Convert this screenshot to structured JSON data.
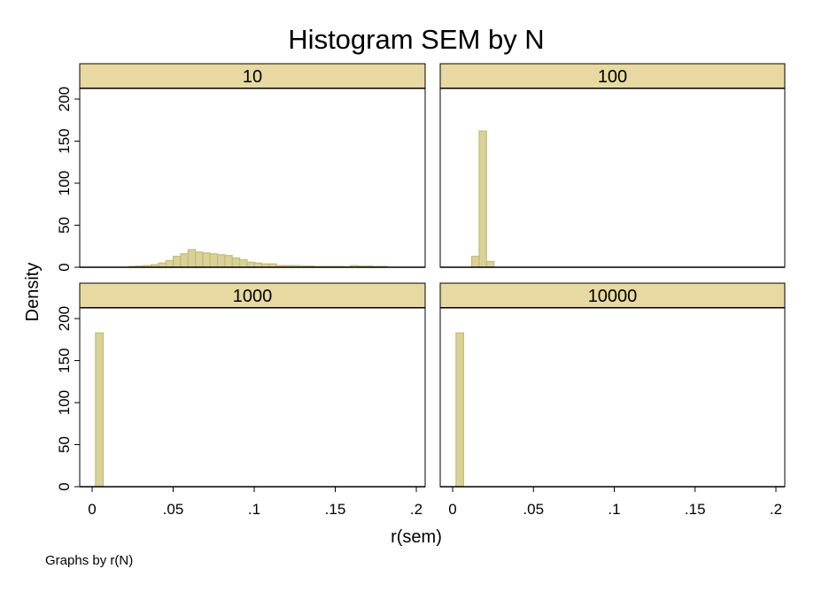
{
  "chart_data": {
    "type": "bar",
    "title": "Histogram SEM by N",
    "xlabel": "r(sem)",
    "ylabel": "Density",
    "note": "Graphs by r(N)",
    "xlim": [
      0,
      0.2
    ],
    "ylim": [
      0,
      200
    ],
    "xticks": [
      "0",
      ".05",
      ".1",
      ".15",
      ".2"
    ],
    "yticks": [
      "0",
      "50",
      "100",
      "150",
      "200"
    ],
    "grid": false,
    "colors": {
      "bar_fill": "#d8d19a",
      "bar_stroke": "#c6bc73",
      "strip_fill": "#e7d9a1"
    },
    "panels": [
      {
        "label": "10",
        "bin_width": 0.00455,
        "bins": [
          {
            "x": 0.0228,
            "y": 1
          },
          {
            "x": 0.0273,
            "y": 1.5
          },
          {
            "x": 0.0319,
            "y": 2
          },
          {
            "x": 0.0364,
            "y": 3
          },
          {
            "x": 0.041,
            "y": 5
          },
          {
            "x": 0.0455,
            "y": 8
          },
          {
            "x": 0.05,
            "y": 13
          },
          {
            "x": 0.0546,
            "y": 16
          },
          {
            "x": 0.0592,
            "y": 21
          },
          {
            "x": 0.0637,
            "y": 18
          },
          {
            "x": 0.0683,
            "y": 17
          },
          {
            "x": 0.0728,
            "y": 16
          },
          {
            "x": 0.0774,
            "y": 15
          },
          {
            "x": 0.0819,
            "y": 14
          },
          {
            "x": 0.0865,
            "y": 11
          },
          {
            "x": 0.091,
            "y": 9
          },
          {
            "x": 0.0956,
            "y": 6
          },
          {
            "x": 0.1001,
            "y": 5
          },
          {
            "x": 0.1047,
            "y": 4
          },
          {
            "x": 0.1092,
            "y": 4
          },
          {
            "x": 0.1138,
            "y": 2
          },
          {
            "x": 0.1183,
            "y": 2
          },
          {
            "x": 0.1229,
            "y": 2
          },
          {
            "x": 0.1274,
            "y": 1.5
          },
          {
            "x": 0.132,
            "y": 1.5
          },
          {
            "x": 0.1365,
            "y": 1
          },
          {
            "x": 0.1411,
            "y": 1
          },
          {
            "x": 0.1456,
            "y": 1
          },
          {
            "x": 0.1502,
            "y": 1
          },
          {
            "x": 0.1547,
            "y": 0.8
          },
          {
            "x": 0.1593,
            "y": 2
          },
          {
            "x": 0.1638,
            "y": 1.5
          },
          {
            "x": 0.1684,
            "y": 1.5
          },
          {
            "x": 0.1729,
            "y": 1
          },
          {
            "x": 0.1775,
            "y": 1
          }
        ]
      },
      {
        "label": "100",
        "bin_width": 0.0046,
        "bins": [
          {
            "x": 0.0118,
            "y": 13
          },
          {
            "x": 0.0164,
            "y": 162
          },
          {
            "x": 0.021,
            "y": 7
          }
        ]
      },
      {
        "label": "1000",
        "bin_width": 0.0047,
        "bins": [
          {
            "x": 0.0021,
            "y": 183
          }
        ]
      },
      {
        "label": "10000",
        "bin_width": 0.0047,
        "bins": [
          {
            "x": 0.0021,
            "y": 183
          }
        ]
      }
    ]
  }
}
